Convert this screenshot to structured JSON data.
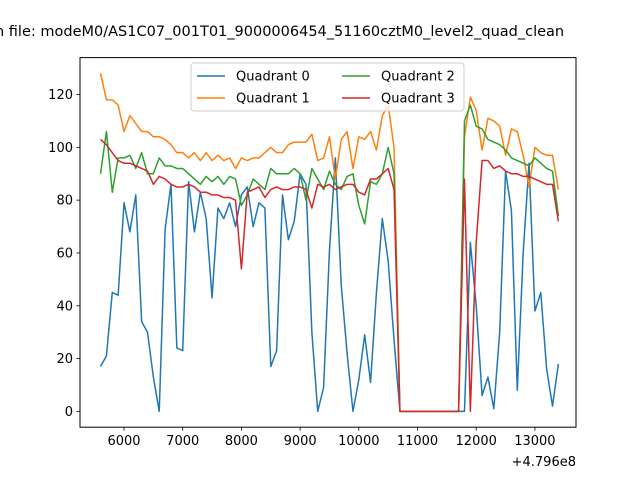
{
  "chart_data": {
    "type": "line",
    "title": "n file: modeM0/AS1C07_001T01_9000006454_51160cztM0_level2_quad_clean",
    "xlabel": "",
    "ylabel": "",
    "x_offset_label": "+4.796e8",
    "xlim": [
      5250,
      13700
    ],
    "ylim": [
      -6,
      134
    ],
    "x_ticks": [
      6000,
      7000,
      8000,
      9000,
      10000,
      11000,
      12000,
      13000
    ],
    "x_tick_labels": [
      "6000",
      "7000",
      "8000",
      "9000",
      "10000",
      "11000",
      "12000",
      "13000"
    ],
    "y_ticks": [
      0,
      20,
      40,
      60,
      80,
      100,
      120
    ],
    "y_tick_labels": [
      "0",
      "20",
      "40",
      "60",
      "80",
      "100",
      "120"
    ],
    "grid": false,
    "legend_position": "upper-center",
    "legend_columns": 2,
    "x": [
      5600,
      5700,
      5800,
      5900,
      6000,
      6100,
      6200,
      6300,
      6400,
      6500,
      6600,
      6700,
      6800,
      6900,
      7000,
      7100,
      7200,
      7300,
      7400,
      7500,
      7600,
      7700,
      7800,
      7900,
      8000,
      8100,
      8200,
      8300,
      8400,
      8500,
      8600,
      8700,
      8800,
      8900,
      9000,
      9100,
      9200,
      9300,
      9400,
      9500,
      9600,
      9700,
      9800,
      9900,
      10000,
      10100,
      10200,
      10300,
      10400,
      10500,
      10600,
      10700,
      11700,
      11800,
      11900,
      12000,
      12100,
      12200,
      12300,
      12400,
      12500,
      12600,
      12700,
      12800,
      12900,
      13000,
      13100,
      13200,
      13300,
      13400
    ],
    "series": [
      {
        "name": "Quadrant 0",
        "color": "#1f77b4",
        "values": [
          17,
          21,
          45,
          44,
          79,
          68,
          82,
          34,
          30,
          13,
          0,
          69,
          86,
          24,
          23,
          87,
          68,
          83,
          73,
          43,
          77,
          73,
          79,
          70,
          82,
          85,
          70,
          79,
          77,
          17,
          23,
          82,
          65,
          72,
          90,
          86,
          30,
          0,
          9,
          61,
          96,
          48,
          22,
          0,
          12,
          29,
          11,
          45,
          73,
          57,
          27,
          0,
          0,
          0,
          64,
          40,
          6,
          13,
          1,
          30,
          91,
          76,
          8,
          60,
          94,
          38,
          45,
          16,
          2,
          18
        ]
      },
      {
        "name": "Quadrant 1",
        "color": "#ff7f0e",
        "values": [
          128,
          118,
          118,
          116,
          106,
          112,
          109,
          106,
          106,
          104,
          104,
          103,
          101,
          98,
          98,
          96,
          98,
          95,
          98,
          95,
          97,
          95,
          96,
          92,
          96,
          95,
          96,
          96,
          98,
          100,
          98,
          98,
          101,
          102,
          102,
          102,
          105,
          95,
          96,
          104,
          88,
          103,
          106,
          92,
          104,
          103,
          106,
          99,
          112,
          116,
          100,
          0,
          0,
          104,
          119,
          114,
          99,
          111,
          110,
          108,
          97,
          107,
          106,
          97,
          85,
          100,
          98,
          97,
          97,
          84
        ]
      },
      {
        "name": "Quadrant 2",
        "color": "#2ca02c",
        "values": [
          90,
          106,
          83,
          96,
          96,
          97,
          92,
          98,
          90,
          90,
          96,
          93,
          93,
          92,
          92,
          90,
          88,
          86,
          89,
          87,
          89,
          86,
          89,
          88,
          78,
          82,
          88,
          86,
          84,
          92,
          90,
          90,
          90,
          92,
          90,
          80,
          92,
          88,
          84,
          91,
          86,
          84,
          89,
          90,
          78,
          71,
          87,
          86,
          90,
          100,
          90,
          0,
          0,
          110,
          116,
          108,
          107,
          103,
          102,
          101,
          99,
          96,
          95,
          94,
          93,
          96,
          94,
          92,
          91,
          74
        ]
      },
      {
        "name": "Quadrant 3",
        "color": "#d62728",
        "values": [
          103,
          101,
          98,
          95,
          94,
          94,
          93,
          92,
          91,
          86,
          89,
          88,
          86,
          85,
          85,
          86,
          85,
          83,
          83,
          82,
          82,
          81,
          81,
          80,
          54,
          83,
          84,
          85,
          81,
          84,
          85,
          84,
          84,
          85,
          85,
          84,
          77,
          86,
          85,
          86,
          84,
          85,
          86,
          86,
          83,
          82,
          88,
          88,
          90,
          92,
          84,
          0,
          0,
          88,
          0,
          64,
          95,
          95,
          92,
          93,
          91,
          90,
          90,
          89,
          89,
          88,
          87,
          86,
          86,
          72
        ]
      }
    ]
  }
}
